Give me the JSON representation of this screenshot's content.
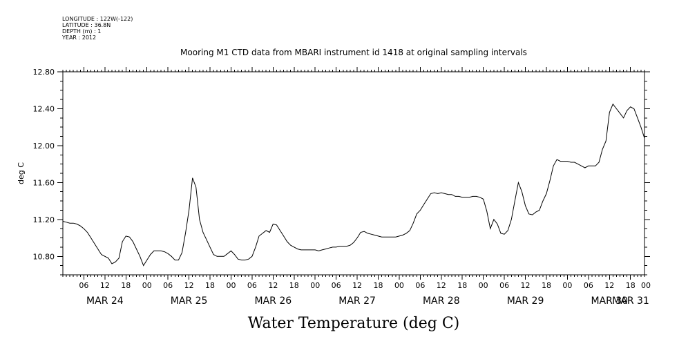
{
  "header": {
    "longitude": "LONGITUDE : 122W(-122)",
    "latitude": "LATITUDE : 36.8N",
    "depth": "DEPTH (m) : 1",
    "year": "YEAR : 2012"
  },
  "chart_data": {
    "type": "line",
    "title": "Mooring M1 CTD data from MBARI instrument id 1418 at original sampling intervals",
    "xlabel": "Water Temperature (deg C)",
    "ylabel": "deg C",
    "ylim": [
      10.6,
      12.8
    ],
    "y_ticks": [
      "10.80",
      "11.20",
      "11.60",
      "12.00",
      "12.40",
      "12.80"
    ],
    "y_tick_values": [
      10.8,
      11.2,
      11.6,
      12.0,
      12.4,
      12.8
    ],
    "x_range_hours": [
      0,
      166
    ],
    "x_hour_labels": [
      "06",
      "12",
      "18",
      "00",
      "06",
      "12",
      "18",
      "00",
      "06",
      "12",
      "18",
      "00",
      "06",
      "12",
      "18",
      "00",
      "06",
      "12",
      "18",
      "00",
      "06",
      "12",
      "18",
      "00",
      "06",
      "12",
      "18",
      "00"
    ],
    "x_hour_label_hours": [
      6,
      12,
      18,
      24,
      30,
      36,
      42,
      48,
      54,
      60,
      66,
      72,
      78,
      84,
      90,
      96,
      102,
      108,
      114,
      120,
      126,
      132,
      138,
      144,
      150,
      156,
      162,
      168
    ],
    "day_labels": [
      "MAR 24",
      "MAR 25",
      "MAR 26",
      "MAR 27",
      "MAR 28",
      "MAR 29",
      "MAR 30",
      "MAR 31"
    ],
    "day_label_hours": [
      12,
      36,
      60,
      84,
      108,
      132,
      156,
      168
    ],
    "grid": false,
    "series": [
      {
        "x": [
          0,
          1,
          2,
          3,
          4,
          5,
          6,
          7,
          8,
          9,
          10,
          11,
          12,
          13,
          14,
          15,
          16,
          17,
          18,
          19,
          20,
          21,
          22,
          23,
          24,
          25,
          26,
          27,
          28,
          29,
          30,
          31,
          32,
          33,
          34,
          35,
          36,
          37,
          38,
          39,
          40,
          41,
          42,
          43,
          44,
          45,
          46,
          47,
          48,
          49,
          50,
          51,
          52,
          53,
          54,
          55,
          56,
          57,
          58,
          59,
          60,
          61,
          62,
          63,
          64,
          65,
          66,
          67,
          68,
          69,
          70,
          71,
          72,
          73,
          74,
          75,
          76,
          77,
          78,
          79,
          80,
          81,
          82,
          83,
          84,
          85,
          86,
          87,
          88,
          89,
          90,
          91,
          92,
          93,
          94,
          95,
          96,
          97,
          98,
          99,
          100,
          101,
          102,
          103,
          104,
          105,
          106,
          107,
          108,
          109,
          110,
          111,
          112,
          113,
          114,
          115,
          116,
          117,
          118,
          119,
          120,
          121,
          122,
          123,
          124,
          125,
          126,
          127,
          128,
          129,
          130,
          131,
          132,
          133,
          134,
          135,
          136,
          137,
          138,
          139,
          140,
          141,
          142,
          143,
          144,
          145,
          146,
          147,
          148,
          149,
          150,
          151,
          152,
          153,
          154,
          155,
          156,
          157,
          158,
          159,
          160,
          161,
          162,
          163,
          164,
          165,
          166
        ],
        "y": [
          11.18,
          11.17,
          11.16,
          11.16,
          11.15,
          11.13,
          11.1,
          11.06,
          11.0,
          10.94,
          10.88,
          10.82,
          10.8,
          10.78,
          10.72,
          10.74,
          10.78,
          10.96,
          11.02,
          11.01,
          10.96,
          10.88,
          10.8,
          10.7,
          10.76,
          10.82,
          10.86,
          10.86,
          10.86,
          10.85,
          10.83,
          10.8,
          10.76,
          10.76,
          10.84,
          11.05,
          11.3,
          11.65,
          11.55,
          11.2,
          11.06,
          10.98,
          10.9,
          10.82,
          10.8,
          10.8,
          10.8,
          10.83,
          10.86,
          10.82,
          10.77,
          10.76,
          10.76,
          10.77,
          10.8,
          10.9,
          11.02,
          11.05,
          11.08,
          11.06,
          11.15,
          11.14,
          11.08,
          11.02,
          10.96,
          10.92,
          10.9,
          10.88,
          10.87,
          10.87,
          10.87,
          10.87,
          10.87,
          10.86,
          10.87,
          10.88,
          10.89,
          10.9,
          10.9,
          10.91,
          10.91,
          10.91,
          10.92,
          10.95,
          11.0,
          11.06,
          11.07,
          11.05,
          11.04,
          11.03,
          11.02,
          11.01,
          11.01,
          11.01,
          11.01,
          11.01,
          11.02,
          11.03,
          11.05,
          11.08,
          11.16,
          11.26,
          11.3,
          11.36,
          11.42,
          11.48,
          11.49,
          11.48,
          11.49,
          11.48,
          11.47,
          11.47,
          11.45,
          11.45,
          11.44,
          11.44,
          11.44,
          11.45,
          11.45,
          11.44,
          11.42,
          11.29,
          11.1,
          11.2,
          11.15,
          11.05,
          11.04,
          11.08,
          11.2,
          11.4,
          11.6,
          11.5,
          11.35,
          11.26,
          11.25,
          11.28,
          11.3,
          11.4,
          11.48,
          11.62,
          11.78,
          11.85,
          11.83,
          11.83,
          11.83,
          11.82,
          11.82,
          11.8,
          11.78,
          11.76,
          11.78,
          11.78,
          11.78,
          11.82,
          11.96,
          12.05,
          12.36,
          12.45,
          12.4,
          12.35,
          12.3,
          12.38,
          12.42,
          12.4,
          12.3,
          12.2,
          12.08
        ]
      }
    ]
  }
}
